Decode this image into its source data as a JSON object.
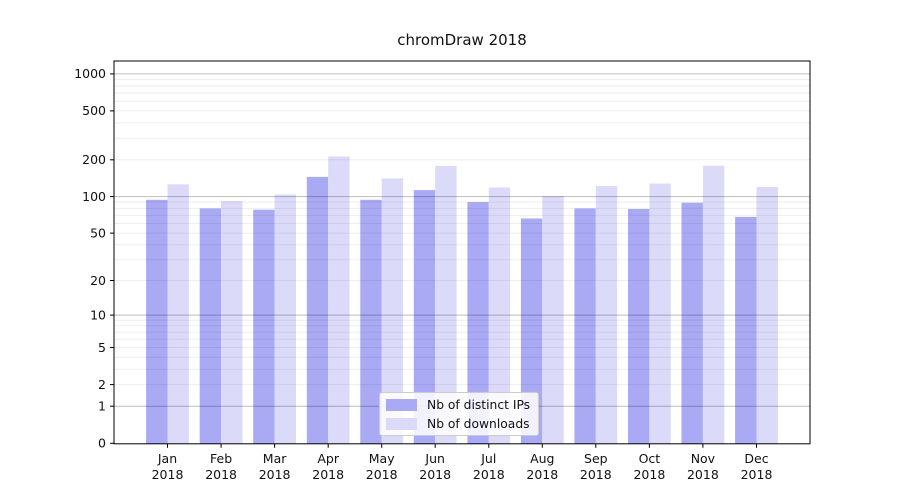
{
  "chart_data": {
    "type": "bar",
    "title": "chromDraw 2018",
    "categories": [
      "Jan",
      "Feb",
      "Mar",
      "Apr",
      "May",
      "Jun",
      "Jul",
      "Aug",
      "Sep",
      "Oct",
      "Nov",
      "Dec"
    ],
    "year": "2018",
    "series": [
      {
        "name": "Nb of distinct IPs",
        "color": "#a9a9f4",
        "values": [
          94,
          80,
          78,
          145,
          94,
          113,
          90,
          66,
          80,
          79,
          89,
          68
        ]
      },
      {
        "name": "Nb of downloads",
        "color": "#dbdbf9",
        "values": [
          126,
          92,
          104,
          213,
          141,
          178,
          119,
          101,
          122,
          128,
          179,
          120
        ]
      }
    ],
    "yticks": [
      0,
      1,
      2,
      5,
      10,
      20,
      50,
      100,
      200,
      500,
      1000
    ],
    "yscale": "log10(value+1)",
    "ylim": [
      0,
      1270
    ],
    "grid": true,
    "grid_minor_values": [
      2,
      3,
      4,
      5,
      6,
      7,
      8,
      9,
      20,
      30,
      40,
      50,
      60,
      70,
      80,
      90,
      200,
      300,
      400,
      500,
      600,
      700,
      800,
      900
    ],
    "grid_major_values": [
      1,
      10,
      100,
      1000
    ],
    "legend_position": "lower center",
    "colors": {
      "axis": "#000000",
      "tick_label": "#111111",
      "grid_major": "rgba(0,0,0,0.26)",
      "grid_minor": "rgba(0,0,0,0.065)"
    }
  }
}
